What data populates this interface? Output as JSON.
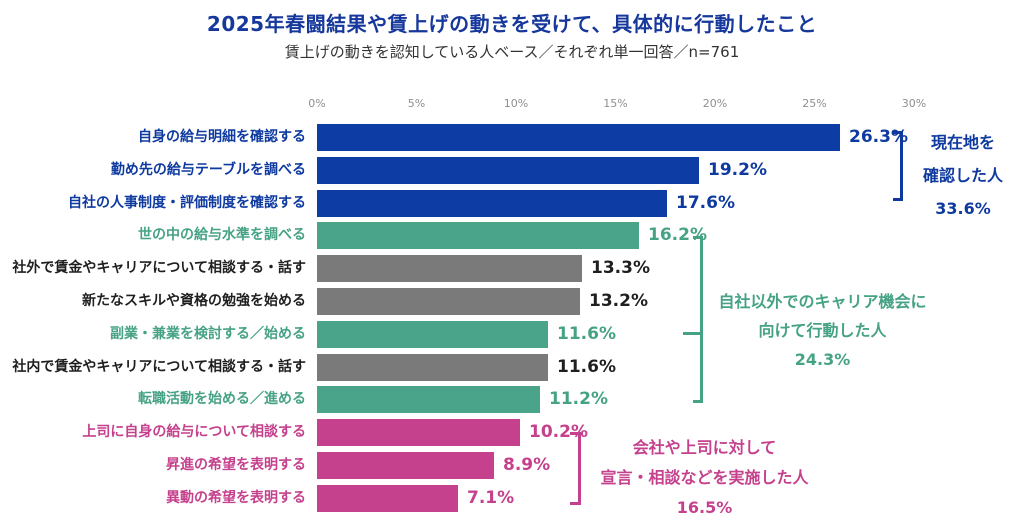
{
  "title": "2025年春闘結果や賃上げの動きを受けて、具体的に行動したこと",
  "subtitle": "賃上げの動きを認知している人ベース／それぞれ単一回答／n=761",
  "colors": {
    "title_blue": "#16379b",
    "blue": "#0e3aa0",
    "bar_blue": "#0d3ca4",
    "teal": "#46a285",
    "bar_teal": "#4aa489",
    "gray_bar": "#7a7a7a",
    "black": "#1f1f1f",
    "pink": "#c5418d",
    "axis_gray": "#8f8f8f"
  },
  "axis": {
    "ticks": [
      "0%",
      "5%",
      "10%",
      "15%",
      "20%",
      "25%",
      "30%"
    ],
    "tick_values": [
      0,
      5,
      10,
      15,
      20,
      25,
      30
    ],
    "max": 30
  },
  "bars": [
    {
      "label": "自身の給与明細を確認する",
      "value": 26.3,
      "display": "26.3%",
      "group": "current-location",
      "bar_color": "bar_blue",
      "text_color": "blue"
    },
    {
      "label": "勤め先の給与テーブルを調べる",
      "value": 19.2,
      "display": "19.2%",
      "group": "current-location",
      "bar_color": "bar_blue",
      "text_color": "blue"
    },
    {
      "label": "自社の人事制度・評価制度を確認する",
      "value": 17.6,
      "display": "17.6%",
      "group": "current-location",
      "bar_color": "bar_blue",
      "text_color": "blue"
    },
    {
      "label": "世の中の給与水準を調べる",
      "value": 16.2,
      "display": "16.2%",
      "group": "external-career",
      "bar_color": "bar_teal",
      "text_color": "teal"
    },
    {
      "label": "社外で賃金やキャリアについて相談する・話す",
      "value": 13.3,
      "display": "13.3%",
      "group": "external-career",
      "bar_color": "gray_bar",
      "text_color": "black"
    },
    {
      "label": "新たなスキルや資格の勉強を始める",
      "value": 13.2,
      "display": "13.2%",
      "group": "external-career",
      "bar_color": "gray_bar",
      "text_color": "black"
    },
    {
      "label": "副業・兼業を検討する／始める",
      "value": 11.6,
      "display": "11.6%",
      "group": "external-career",
      "bar_color": "bar_teal",
      "text_color": "teal"
    },
    {
      "label": "社内で賃金やキャリアについて相談する・話す",
      "value": 11.6,
      "display": "11.6%",
      "group": "external-career",
      "bar_color": "gray_bar",
      "text_color": "black"
    },
    {
      "label": "転職活動を始める／進める",
      "value": 11.2,
      "display": "11.2%",
      "group": "external-career",
      "bar_color": "bar_teal",
      "text_color": "teal"
    },
    {
      "label": "上司に自身の給与について相談する",
      "value": 10.2,
      "display": "10.2%",
      "group": "declared-to-company",
      "bar_color": "pink",
      "text_color": "pink"
    },
    {
      "label": "昇進の希望を表明する",
      "value": 8.9,
      "display": "8.9%",
      "group": "declared-to-company",
      "bar_color": "pink",
      "text_color": "pink"
    },
    {
      "label": "異動の希望を表明する",
      "value": 7.1,
      "display": "7.1%",
      "group": "declared-to-company",
      "bar_color": "pink",
      "text_color": "pink"
    }
  ],
  "groups": [
    {
      "id": "current-location",
      "lines": [
        "現在地を",
        "確認した人",
        "33.6%"
      ],
      "total": 33.6,
      "color": "blue"
    },
    {
      "id": "external-career",
      "lines": [
        "自社以外でのキャリア機会に",
        "向けて行動した人",
        "24.3%"
      ],
      "total": 24.3,
      "color": "teal"
    },
    {
      "id": "declared-to-company",
      "lines": [
        "会社や上司に対して",
        "宣言・相談などを実施した人",
        "16.5%"
      ],
      "total": 16.5,
      "color": "pink"
    }
  ],
  "chart_data": {
    "type": "bar",
    "orientation": "horizontal",
    "title": "2025年春闘結果や賃上げの動きを受けて、具体的に行動したこと",
    "subtitle": "賃上げの動きを認知している人ベース／それぞれ単一回答／n=761",
    "categories": [
      "自身の給与明細を確認する",
      "勤め先の給与テーブルを調べる",
      "自社の人事制度・評価制度を確認する",
      "世の中の給与水準を調べる",
      "社外で賃金やキャリアについて相談する・話す",
      "新たなスキルや資格の勉強を始める",
      "副業・兼業を検討する／始める",
      "社内で賃金やキャリアについて相談する・話す",
      "転職活動を始める／進める",
      "上司に自身の給与について相談する",
      "昇進の希望を表明する",
      "異動の希望を表明する"
    ],
    "values": [
      26.3,
      19.2,
      17.6,
      16.2,
      13.3,
      13.2,
      11.6,
      11.6,
      11.2,
      10.2,
      8.9,
      7.1
    ],
    "xlabel": "",
    "ylabel": "",
    "xlim": [
      0,
      30
    ],
    "xticks": [
      "0%",
      "5%",
      "10%",
      "15%",
      "20%",
      "25%",
      "30%"
    ],
    "grid": false,
    "legend": null,
    "annotations": [
      {
        "text": "現在地を確認した人 33.6%",
        "applies_to": [
          "自身の給与明細を確認する",
          "勤め先の給与テーブルを調べる",
          "自社の人事制度・評価制度を確認する"
        ]
      },
      {
        "text": "自社以外でのキャリア機会に向けて行動した人 24.3%",
        "applies_to": [
          "世の中の給与水準を調べる",
          "社外で賃金やキャリアについて相談する・話す",
          "新たなスキルや資格の勉強を始める",
          "副業・兼業を検討する／始める",
          "社内で賃金やキャリアについて相談する・話す",
          "転職活動を始める／進める"
        ]
      },
      {
        "text": "会社や上司に対して宣言・相談などを実施した人 16.5%",
        "applies_to": [
          "上司に自身の給与について相談する",
          "昇進の希望を表明する",
          "異動の希望を表明する"
        ]
      }
    ]
  }
}
